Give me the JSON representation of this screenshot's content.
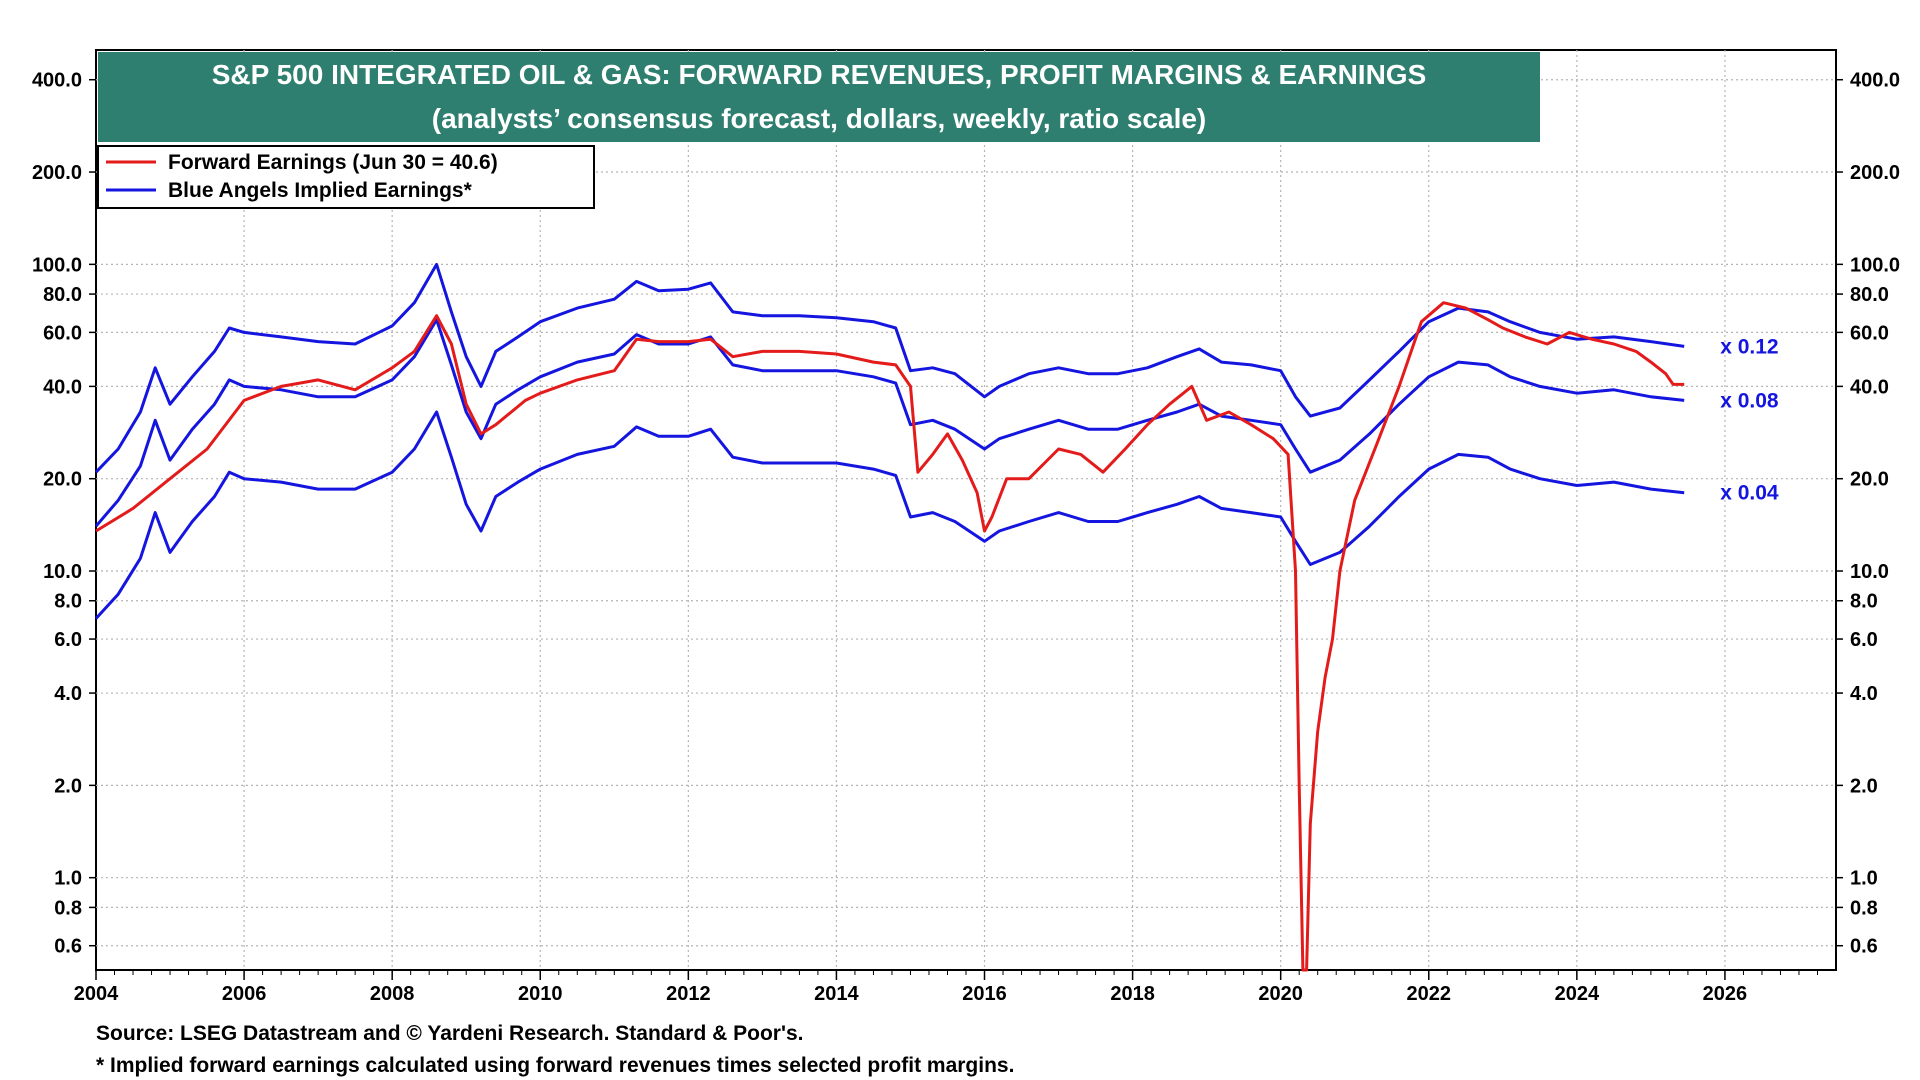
{
  "chart_data": {
    "type": "line",
    "title": "S&P 500 INTEGRATED OIL & GAS: FORWARD REVENUES, PROFIT MARGINS & EARNINGS",
    "subtitle": "(analysts’ consensus forecast, dollars, weekly, ratio scale)",
    "y_scale": "log",
    "ylim": [
      0.5,
      500
    ],
    "xlim": [
      2004,
      2027.5
    ],
    "x_ticks": [
      "2004",
      "2006",
      "2008",
      "2010",
      "2012",
      "2014",
      "2016",
      "2018",
      "2020",
      "2022",
      "2024",
      "2026"
    ],
    "y_ticks": [
      "400.0",
      "200.0",
      "100.0",
      "80.0",
      "60.0",
      "40.0",
      "20.0",
      "10.0",
      "8.0",
      "6.0",
      "4.0",
      "2.0",
      "1.0",
      "0.8",
      "0.6"
    ],
    "grid": true,
    "legend_position": "top-left",
    "legend": [
      {
        "label": "Forward Earnings (Jun 30 = 40.6)",
        "color": "#e41b1b"
      },
      {
        "label": "Blue Angels Implied Earnings*",
        "color": "#1515e0"
      }
    ],
    "series": [
      {
        "name": "Forward Earnings (Jun 30 = 40.6)",
        "color": "#e41b1b",
        "x": [
          2004.0,
          2004.5,
          2005.0,
          2005.5,
          2006.0,
          2006.5,
          2007.0,
          2007.5,
          2008.0,
          2008.3,
          2008.6,
          2008.8,
          2009.0,
          2009.2,
          2009.4,
          2009.8,
          2010.0,
          2010.5,
          2011.0,
          2011.3,
          2011.6,
          2012.0,
          2012.3,
          2012.6,
          2013.0,
          2013.5,
          2014.0,
          2014.5,
          2014.8,
          2015.0,
          2015.1,
          2015.3,
          2015.5,
          2015.7,
          2015.9,
          2016.0,
          2016.1,
          2016.3,
          2016.6,
          2017.0,
          2017.3,
          2017.6,
          2017.9,
          2018.2,
          2018.5,
          2018.8,
          2019.0,
          2019.3,
          2019.6,
          2019.9,
          2020.1,
          2020.2,
          2020.25,
          2020.3,
          2020.35,
          2020.4,
          2020.5,
          2020.6,
          2020.7,
          2020.8,
          2021.0,
          2021.3,
          2021.6,
          2021.9,
          2022.2,
          2022.5,
          2022.8,
          2023.0,
          2023.3,
          2023.6,
          2023.9,
          2024.2,
          2024.5,
          2024.8,
          2025.0,
          2025.2,
          2025.3,
          2025.45
        ],
        "values": [
          13.5,
          16,
          20,
          25,
          36,
          40,
          42,
          39,
          46,
          52,
          68,
          55,
          35,
          28,
          30,
          36,
          38,
          42,
          45,
          57,
          56,
          56,
          57,
          50,
          52,
          52,
          51,
          48,
          47,
          40,
          21,
          24,
          28,
          23,
          18,
          13.5,
          15,
          20,
          20,
          25,
          24,
          21,
          25,
          30,
          35,
          40,
          31,
          33,
          30,
          27,
          24,
          10,
          2,
          0.5,
          0.5,
          1.5,
          3,
          4.5,
          6,
          10,
          17,
          26,
          40,
          65,
          75,
          72,
          66,
          62,
          58,
          55,
          60,
          57,
          55,
          52,
          48,
          44,
          40.6,
          40.6
        ]
      },
      {
        "name": "x 0.12",
        "color": "#1515e0",
        "x": [
          2004.0,
          2004.3,
          2004.6,
          2004.8,
          2005.0,
          2005.3,
          2005.6,
          2005.8,
          2006.0,
          2006.5,
          2007.0,
          2007.5,
          2008.0,
          2008.3,
          2008.6,
          2008.8,
          2009.0,
          2009.2,
          2009.4,
          2009.7,
          2010.0,
          2010.5,
          2011.0,
          2011.3,
          2011.6,
          2012.0,
          2012.3,
          2012.6,
          2013.0,
          2013.5,
          2014.0,
          2014.5,
          2014.8,
          2015.0,
          2015.3,
          2015.6,
          2016.0,
          2016.2,
          2016.6,
          2017.0,
          2017.4,
          2017.8,
          2018.2,
          2018.6,
          2018.9,
          2019.2,
          2019.6,
          2020.0,
          2020.2,
          2020.4,
          2020.8,
          2021.2,
          2021.6,
          2022.0,
          2022.4,
          2022.8,
          2023.1,
          2023.5,
          2024.0,
          2024.5,
          2025.0,
          2025.45
        ],
        "values": [
          21,
          25,
          33,
          46,
          35,
          43,
          52,
          62,
          60,
          58,
          56,
          55,
          63,
          75,
          100,
          70,
          50,
          40,
          52,
          58,
          65,
          72,
          77,
          88,
          82,
          83,
          87,
          70,
          68,
          68,
          67,
          65,
          62,
          45,
          46,
          44,
          37,
          40,
          44,
          46,
          44,
          44,
          46,
          50,
          53,
          48,
          47,
          45,
          37,
          32,
          34,
          42,
          52,
          65,
          72,
          70,
          65,
          60,
          57,
          58,
          56,
          54
        ]
      },
      {
        "name": "x 0.08",
        "color": "#1515e0",
        "x": [
          2004.0,
          2004.3,
          2004.6,
          2004.8,
          2005.0,
          2005.3,
          2005.6,
          2005.8,
          2006.0,
          2006.5,
          2007.0,
          2007.5,
          2008.0,
          2008.3,
          2008.6,
          2008.8,
          2009.0,
          2009.2,
          2009.4,
          2009.7,
          2010.0,
          2010.5,
          2011.0,
          2011.3,
          2011.6,
          2012.0,
          2012.3,
          2012.6,
          2013.0,
          2013.5,
          2014.0,
          2014.5,
          2014.8,
          2015.0,
          2015.3,
          2015.6,
          2016.0,
          2016.2,
          2016.6,
          2017.0,
          2017.4,
          2017.8,
          2018.2,
          2018.6,
          2018.9,
          2019.2,
          2019.6,
          2020.0,
          2020.2,
          2020.4,
          2020.8,
          2021.2,
          2021.6,
          2022.0,
          2022.4,
          2022.8,
          2023.1,
          2023.5,
          2024.0,
          2024.5,
          2025.0,
          2025.45
        ],
        "values": [
          14,
          17,
          22,
          31,
          23,
          29,
          35,
          42,
          40,
          39,
          37,
          37,
          42,
          50,
          66,
          47,
          33,
          27,
          35,
          39,
          43,
          48,
          51,
          59,
          55,
          55,
          58,
          47,
          45,
          45,
          45,
          43,
          41,
          30,
          31,
          29,
          25,
          27,
          29,
          31,
          29,
          29,
          31,
          33,
          35,
          32,
          31,
          30,
          25,
          21,
          23,
          28,
          35,
          43,
          48,
          47,
          43,
          40,
          38,
          39,
          37,
          36
        ]
      },
      {
        "name": "x 0.04",
        "color": "#1515e0",
        "x": [
          2004.0,
          2004.3,
          2004.6,
          2004.8,
          2005.0,
          2005.3,
          2005.6,
          2005.8,
          2006.0,
          2006.5,
          2007.0,
          2007.5,
          2008.0,
          2008.3,
          2008.6,
          2008.8,
          2009.0,
          2009.2,
          2009.4,
          2009.7,
          2010.0,
          2010.5,
          2011.0,
          2011.3,
          2011.6,
          2012.0,
          2012.3,
          2012.6,
          2013.0,
          2013.5,
          2014.0,
          2014.5,
          2014.8,
          2015.0,
          2015.3,
          2015.6,
          2016.0,
          2016.2,
          2016.6,
          2017.0,
          2017.4,
          2017.8,
          2018.2,
          2018.6,
          2018.9,
          2019.2,
          2019.6,
          2020.0,
          2020.2,
          2020.4,
          2020.8,
          2021.2,
          2021.6,
          2022.0,
          2022.4,
          2022.8,
          2023.1,
          2023.5,
          2024.0,
          2024.5,
          2025.0,
          2025.45
        ],
        "values": [
          7,
          8.4,
          11,
          15.5,
          11.5,
          14.5,
          17.5,
          21,
          20,
          19.5,
          18.5,
          18.5,
          21,
          25,
          33,
          23.5,
          16.5,
          13.5,
          17.5,
          19.5,
          21.5,
          24,
          25.5,
          29.5,
          27.5,
          27.5,
          29,
          23.5,
          22.5,
          22.5,
          22.5,
          21.5,
          20.5,
          15,
          15.5,
          14.5,
          12.5,
          13.5,
          14.5,
          15.5,
          14.5,
          14.5,
          15.5,
          16.5,
          17.5,
          16,
          15.5,
          15,
          12.5,
          10.5,
          11.5,
          14,
          17.5,
          21.5,
          24,
          23.5,
          21.5,
          20,
          19,
          19.5,
          18.5,
          18
        ]
      }
    ],
    "annotations": [
      {
        "text": "x 0.12",
        "color": "#1515e0"
      },
      {
        "text": "x 0.08",
        "color": "#1515e0"
      },
      {
        "text": "x 0.04",
        "color": "#1515e0"
      }
    ]
  },
  "footer": {
    "source": "Source: LSEG Datastream and © Yardeni Research. Standard & Poor's.",
    "note": "* Implied forward earnings calculated using forward revenues times selected profit margins."
  }
}
